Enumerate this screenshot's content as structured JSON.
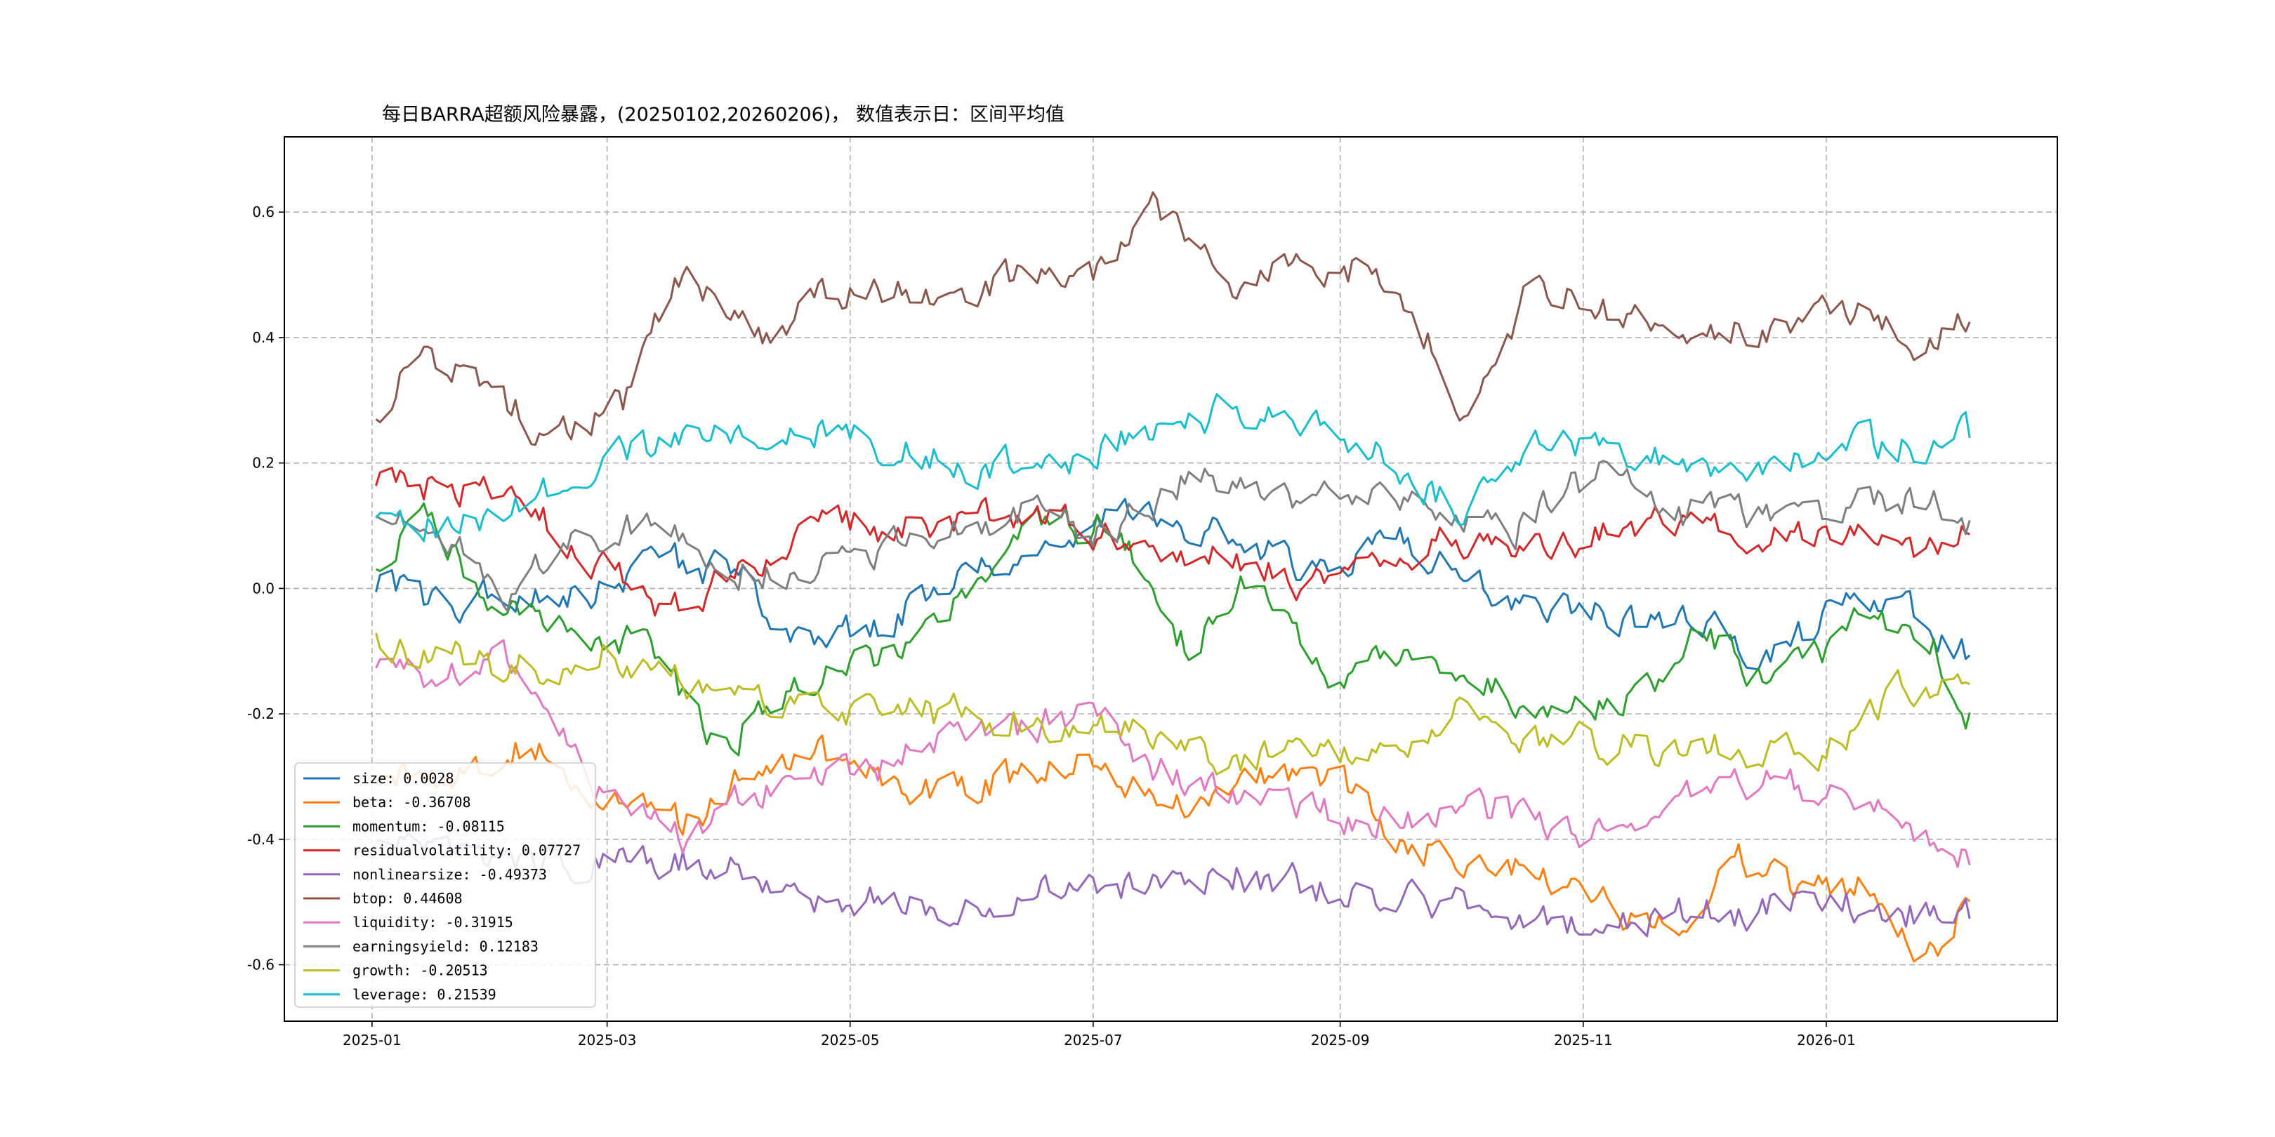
{
  "chart_data": {
    "type": "line",
    "title": "每日BARRA超额风险暴露，(20250102,20260206)， 数值表示日：区间平均值",
    "xlabel": "",
    "ylabel": "",
    "x_start": "2025-01-02",
    "x_end": "2026-02-06",
    "x_range": [
      "2024-12-10",
      "2026-02-28"
    ],
    "ylim": [
      -0.69,
      0.72
    ],
    "x_ticks": [
      "2025-01",
      "2025-03",
      "2025-05",
      "2025-07",
      "2025-09",
      "2025-11",
      "2026-01"
    ],
    "y_ticks": [
      -0.6,
      -0.4,
      -0.2,
      0.0,
      0.2,
      0.4,
      0.6
    ],
    "y_tick_labels": [
      "-0.6",
      "-0.4",
      "-0.2",
      "0.0",
      "0.2",
      "0.4",
      "0.6"
    ],
    "grid": true,
    "legend_position": "lower-left",
    "series": [
      {
        "name": "size",
        "avg": 0.0028,
        "label": "size: 0.0028",
        "color": "#1f77b4",
        "points": [
          [
            "2025-01-02",
            0.01
          ],
          [
            "2025-01-15",
            -0.02
          ],
          [
            "2025-02-05",
            -0.02
          ],
          [
            "2025-02-25",
            0.0
          ],
          [
            "2025-03-15",
            0.04
          ],
          [
            "2025-04-05",
            0.02
          ],
          [
            "2025-04-20",
            -0.1
          ],
          [
            "2025-05-10",
            -0.05
          ],
          [
            "2025-05-25",
            0.0
          ],
          [
            "2025-06-15",
            0.06
          ],
          [
            "2025-07-10",
            0.12
          ],
          [
            "2025-07-25",
            0.1
          ],
          [
            "2025-08-15",
            0.05
          ],
          [
            "2025-09-01",
            0.02
          ],
          [
            "2025-09-15",
            0.1
          ],
          [
            "2025-10-01",
            0.0
          ],
          [
            "2025-10-20",
            -0.01
          ],
          [
            "2025-11-10",
            -0.05
          ],
          [
            "2025-12-01",
            -0.06
          ],
          [
            "2025-12-20",
            -0.1
          ],
          [
            "2026-01-05",
            -0.02
          ],
          [
            "2026-01-25",
            -0.04
          ],
          [
            "2026-02-06",
            -0.12
          ]
        ]
      },
      {
        "name": "beta",
        "avg": -0.36708,
        "label": "beta: -0.36708",
        "color": "#ff7f0e",
        "points": [
          [
            "2025-01-02",
            -0.3
          ],
          [
            "2025-01-20",
            -0.3
          ],
          [
            "2025-02-10",
            -0.25
          ],
          [
            "2025-03-01",
            -0.33
          ],
          [
            "2025-03-20",
            -0.38
          ],
          [
            "2025-04-10",
            -0.26
          ],
          [
            "2025-05-01",
            -0.28
          ],
          [
            "2025-05-20",
            -0.32
          ],
          [
            "2025-06-10",
            -0.3
          ],
          [
            "2025-07-01",
            -0.26
          ],
          [
            "2025-07-20",
            -0.35
          ],
          [
            "2025-08-10",
            -0.3
          ],
          [
            "2025-09-01",
            -0.3
          ],
          [
            "2025-09-20",
            -0.42
          ],
          [
            "2025-10-10",
            -0.42
          ],
          [
            "2025-10-25",
            -0.46
          ],
          [
            "2025-11-10",
            -0.52
          ],
          [
            "2025-11-25",
            -0.52
          ],
          [
            "2025-12-10",
            -0.42
          ],
          [
            "2025-12-25",
            -0.48
          ],
          [
            "2026-01-10",
            -0.48
          ],
          [
            "2026-01-28",
            -0.58
          ],
          [
            "2026-02-06",
            -0.5
          ]
        ]
      },
      {
        "name": "momentum",
        "avg": -0.08115,
        "label": "momentum: -0.08115",
        "color": "#2ca02c",
        "points": [
          [
            "2025-01-02",
            0.04
          ],
          [
            "2025-01-15",
            0.12
          ],
          [
            "2025-02-01",
            -0.05
          ],
          [
            "2025-02-20",
            -0.05
          ],
          [
            "2025-03-10",
            -0.1
          ],
          [
            "2025-03-30",
            -0.25
          ],
          [
            "2025-04-15",
            -0.15
          ],
          [
            "2025-05-10",
            -0.1
          ],
          [
            "2025-06-01",
            0.0
          ],
          [
            "2025-06-20",
            0.1
          ],
          [
            "2025-07-05",
            0.1
          ],
          [
            "2025-07-25",
            -0.1
          ],
          [
            "2025-08-10",
            0.02
          ],
          [
            "2025-08-30",
            -0.15
          ],
          [
            "2025-09-15",
            -0.12
          ],
          [
            "2025-10-05",
            -0.15
          ],
          [
            "2025-10-25",
            -0.18
          ],
          [
            "2025-11-10",
            -0.2
          ],
          [
            "2025-12-01",
            -0.08
          ],
          [
            "2025-12-20",
            -0.15
          ],
          [
            "2026-01-10",
            -0.05
          ],
          [
            "2026-01-25",
            -0.05
          ],
          [
            "2026-02-06",
            -0.2
          ]
        ]
      },
      {
        "name": "residualvolatility",
        "avg": 0.07727,
        "label": "residualvolatility: 0.07727",
        "color": "#d62728",
        "points": [
          [
            "2025-01-02",
            0.17
          ],
          [
            "2025-01-15",
            0.16
          ],
          [
            "2025-02-05",
            0.14
          ],
          [
            "2025-02-25",
            0.05
          ],
          [
            "2025-03-15",
            -0.05
          ],
          [
            "2025-04-05",
            0.04
          ],
          [
            "2025-04-20",
            0.1
          ],
          [
            "2025-05-15",
            0.1
          ],
          [
            "2025-06-05",
            0.12
          ],
          [
            "2025-06-25",
            0.12
          ],
          [
            "2025-07-15",
            0.05
          ],
          [
            "2025-08-05",
            0.05
          ],
          [
            "2025-08-25",
            0.0
          ],
          [
            "2025-09-15",
            0.05
          ],
          [
            "2025-10-05",
            0.08
          ],
          [
            "2025-10-25",
            0.08
          ],
          [
            "2025-11-15",
            0.1
          ],
          [
            "2025-12-05",
            0.1
          ],
          [
            "2025-12-25",
            0.1
          ],
          [
            "2026-01-15",
            0.06
          ],
          [
            "2026-02-06",
            0.08
          ]
        ]
      },
      {
        "name": "nonlinearsize",
        "avg": -0.49373,
        "label": "nonlinearsize: -0.49373",
        "color": "#9467bd",
        "points": [
          [
            "2025-01-02",
            -0.4
          ],
          [
            "2025-02-01",
            -0.45
          ],
          [
            "2025-03-01",
            -0.42
          ],
          [
            "2025-04-01",
            -0.45
          ],
          [
            "2025-05-01",
            -0.5
          ],
          [
            "2025-06-01",
            -0.5
          ],
          [
            "2025-07-01",
            -0.48
          ],
          [
            "2025-08-01",
            -0.45
          ],
          [
            "2025-09-01",
            -0.48
          ],
          [
            "2025-10-01",
            -0.5
          ],
          [
            "2025-11-01",
            -0.54
          ],
          [
            "2025-12-01",
            -0.52
          ],
          [
            "2026-01-01",
            -0.5
          ],
          [
            "2026-02-06",
            -0.52
          ]
        ]
      },
      {
        "name": "btop",
        "avg": 0.44608,
        "label": "btop: 0.44608",
        "color": "#8c564b",
        "points": [
          [
            "2025-01-02",
            0.27
          ],
          [
            "2025-01-12",
            0.38
          ],
          [
            "2025-02-01",
            0.32
          ],
          [
            "2025-02-15",
            0.22
          ],
          [
            "2025-03-05",
            0.3
          ],
          [
            "2025-03-20",
            0.5
          ],
          [
            "2025-04-10",
            0.4
          ],
          [
            "2025-04-30",
            0.48
          ],
          [
            "2025-05-20",
            0.47
          ],
          [
            "2025-06-10",
            0.5
          ],
          [
            "2025-07-01",
            0.5
          ],
          [
            "2025-07-15",
            0.62
          ],
          [
            "2025-08-05",
            0.5
          ],
          [
            "2025-08-30",
            0.52
          ],
          [
            "2025-09-15",
            0.5
          ],
          [
            "2025-10-01",
            0.3
          ],
          [
            "2025-10-20",
            0.48
          ],
          [
            "2025-11-05",
            0.45
          ],
          [
            "2025-11-25",
            0.42
          ],
          [
            "2025-12-15",
            0.42
          ],
          [
            "2026-01-05",
            0.44
          ],
          [
            "2026-01-25",
            0.4
          ],
          [
            "2026-02-06",
            0.42
          ]
        ]
      },
      {
        "name": "liquidity",
        "avg": -0.31915,
        "label": "liquidity: -0.31915",
        "color": "#e377c2",
        "points": [
          [
            "2025-01-02",
            -0.13
          ],
          [
            "2025-01-20",
            -0.15
          ],
          [
            "2025-02-05",
            -0.12
          ],
          [
            "2025-02-25",
            -0.3
          ],
          [
            "2025-03-20",
            -0.4
          ],
          [
            "2025-04-10",
            -0.32
          ],
          [
            "2025-05-01",
            -0.3
          ],
          [
            "2025-05-20",
            -0.25
          ],
          [
            "2025-06-10",
            -0.22
          ],
          [
            "2025-07-01",
            -0.2
          ],
          [
            "2025-07-20",
            -0.3
          ],
          [
            "2025-08-10",
            -0.35
          ],
          [
            "2025-09-01",
            -0.36
          ],
          [
            "2025-09-20",
            -0.38
          ],
          [
            "2025-10-10",
            -0.35
          ],
          [
            "2025-10-30",
            -0.4
          ],
          [
            "2025-11-20",
            -0.35
          ],
          [
            "2025-12-10",
            -0.3
          ],
          [
            "2025-12-30",
            -0.32
          ],
          [
            "2026-01-20",
            -0.36
          ],
          [
            "2026-02-06",
            -0.44
          ]
        ]
      },
      {
        "name": "earningsyield",
        "avg": 0.12183,
        "label": "earningsyield: 0.12183",
        "color": "#7f7f7f",
        "points": [
          [
            "2025-01-02",
            0.11
          ],
          [
            "2025-01-15",
            0.1
          ],
          [
            "2025-02-05",
            -0.02
          ],
          [
            "2025-02-25",
            0.1
          ],
          [
            "2025-03-20",
            0.08
          ],
          [
            "2025-04-10",
            0.02
          ],
          [
            "2025-05-01",
            0.05
          ],
          [
            "2025-05-20",
            0.1
          ],
          [
            "2025-06-15",
            0.12
          ],
          [
            "2025-07-05",
            0.08
          ],
          [
            "2025-07-25",
            0.18
          ],
          [
            "2025-08-15",
            0.15
          ],
          [
            "2025-09-05",
            0.15
          ],
          [
            "2025-09-25",
            0.12
          ],
          [
            "2025-10-15",
            0.1
          ],
          [
            "2025-11-05",
            0.18
          ],
          [
            "2025-11-25",
            0.12
          ],
          [
            "2025-12-15",
            0.12
          ],
          [
            "2026-01-05",
            0.12
          ],
          [
            "2026-01-25",
            0.15
          ],
          [
            "2026-02-06",
            0.1
          ]
        ]
      },
      {
        "name": "growth",
        "avg": -0.20513,
        "label": "growth: -0.20513",
        "color": "#bcbd22",
        "points": [
          [
            "2025-01-02",
            -0.08
          ],
          [
            "2025-02-01",
            -0.13
          ],
          [
            "2025-03-01",
            -0.1
          ],
          [
            "2025-04-01",
            -0.17
          ],
          [
            "2025-05-01",
            -0.2
          ],
          [
            "2025-06-01",
            -0.2
          ],
          [
            "2025-07-01",
            -0.22
          ],
          [
            "2025-08-01",
            -0.26
          ],
          [
            "2025-09-01",
            -0.28
          ],
          [
            "2025-10-01",
            -0.2
          ],
          [
            "2025-11-01",
            -0.25
          ],
          [
            "2025-12-01",
            -0.25
          ],
          [
            "2026-01-01",
            -0.26
          ],
          [
            "2026-01-20",
            -0.14
          ],
          [
            "2026-02-06",
            -0.15
          ]
        ]
      },
      {
        "name": "leverage",
        "avg": 0.21539,
        "label": "leverage: 0.21539",
        "color": "#17becf",
        "points": [
          [
            "2025-01-02",
            0.1
          ],
          [
            "2025-02-01",
            0.1
          ],
          [
            "2025-03-01",
            0.2
          ],
          [
            "2025-04-01",
            0.26
          ],
          [
            "2025-05-01",
            0.24
          ],
          [
            "2025-06-01",
            0.2
          ],
          [
            "2025-07-01",
            0.22
          ],
          [
            "2025-08-01",
            0.28
          ],
          [
            "2025-09-01",
            0.26
          ],
          [
            "2025-10-01",
            0.12
          ],
          [
            "2025-10-20",
            0.25
          ],
          [
            "2025-11-10",
            0.22
          ],
          [
            "2025-12-01",
            0.2
          ],
          [
            "2026-01-01",
            0.22
          ],
          [
            "2026-02-06",
            0.24
          ]
        ]
      }
    ]
  }
}
